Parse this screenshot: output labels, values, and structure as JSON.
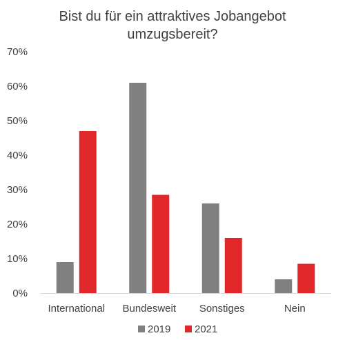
{
  "chart_data": {
    "type": "bar",
    "title_lines": [
      "Bist du für ein attraktives Jobangebot",
      "umzugsbereit?"
    ],
    "categories": [
      "International",
      "Bundesweit",
      "Sonstiges",
      "Nein"
    ],
    "series": [
      {
        "name": "2019",
        "color": "#808080",
        "values": [
          9,
          61,
          26,
          4
        ]
      },
      {
        "name": "2021",
        "color": "#e0282a",
        "values": [
          47,
          28.5,
          16,
          8.5
        ]
      }
    ],
    "y_ticks": [
      "0%",
      "10%",
      "20%",
      "30%",
      "40%",
      "50%",
      "60%",
      "70%"
    ],
    "ylim": [
      0,
      70
    ],
    "grid": false,
    "legend_position": "bottom"
  }
}
